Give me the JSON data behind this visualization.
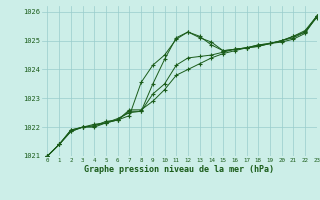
{
  "title": "Graphe pression niveau de la mer (hPa)",
  "bg_color": "#cceee8",
  "grid_color": "#99cccc",
  "line_color": "#1a5c1a",
  "xlabel_color": "#1a5c1a",
  "xlim": [
    -0.5,
    23
  ],
  "ylim": [
    1021.0,
    1026.2
  ],
  "yticks": [
    1021,
    1022,
    1023,
    1024,
    1025,
    1026
  ],
  "xticks": [
    0,
    1,
    2,
    3,
    4,
    5,
    6,
    7,
    8,
    9,
    10,
    11,
    12,
    13,
    14,
    15,
    16,
    17,
    18,
    19,
    20,
    21,
    22,
    23
  ],
  "series": [
    [
      1021.0,
      1021.4,
      1021.9,
      1022.0,
      1022.0,
      1022.15,
      1022.25,
      1022.6,
      1022.6,
      1022.9,
      1023.3,
      1023.8,
      1024.0,
      1024.2,
      1024.4,
      1024.55,
      1024.65,
      1024.75,
      1024.85,
      1024.9,
      1025.0,
      1025.15,
      1025.3,
      1025.85
    ],
    [
      1021.0,
      1021.4,
      1021.9,
      1022.0,
      1022.05,
      1022.2,
      1022.25,
      1022.55,
      1022.55,
      1023.15,
      1023.5,
      1024.15,
      1024.4,
      1024.45,
      1024.5,
      1024.6,
      1024.7,
      1024.75,
      1024.85,
      1024.9,
      1025.0,
      1025.15,
      1025.35,
      1025.85
    ],
    [
      1021.0,
      1021.4,
      1021.85,
      1022.0,
      1022.05,
      1022.15,
      1022.25,
      1022.4,
      1023.55,
      1024.15,
      1024.5,
      1025.05,
      1025.3,
      1025.15,
      1024.85,
      1024.65,
      1024.7,
      1024.75,
      1024.8,
      1024.9,
      1025.0,
      1025.1,
      1025.3,
      1025.8
    ],
    [
      1021.0,
      1021.4,
      1021.85,
      1022.0,
      1022.1,
      1022.15,
      1022.3,
      1022.5,
      1022.55,
      1023.5,
      1024.35,
      1025.1,
      1025.3,
      1025.1,
      1024.95,
      1024.65,
      1024.7,
      1024.75,
      1024.8,
      1024.9,
      1024.95,
      1025.05,
      1025.25,
      1025.85
    ]
  ]
}
